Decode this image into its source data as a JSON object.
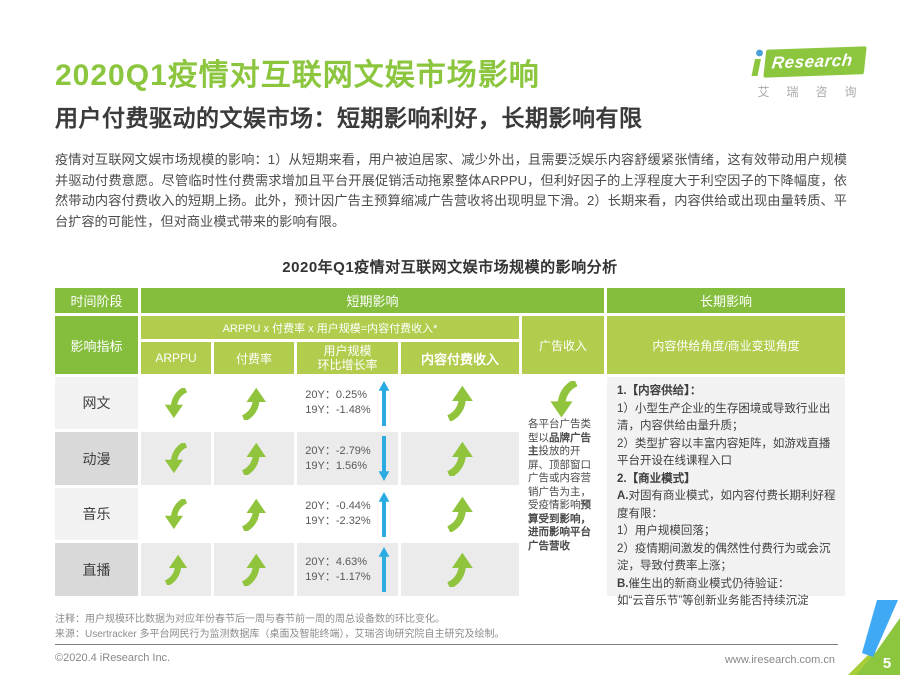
{
  "header": {
    "title": "2020Q1疫情对互联网文娱市场影响",
    "subtitle": "用户付费驱动的文娱市场：短期影响利好，长期影响有限",
    "logo": {
      "i": "i",
      "name": "Research",
      "cn": "艾瑞咨询"
    }
  },
  "intro": "疫情对互联网文娱市场规模的影响：1）从短期来看，用户被迫居家、减少外出，且需要泛娱乐内容舒缓紧张情绪，这有效带动用户规模并驱动付费意愿。尽管临时性付费需求增加且平台开展促销活动拖累整体ARPPU，但利好因子的上浮程度大于利空因子的下降幅度，依然带动内容付费收入的短期上扬。此外，预计因广告主预算缩减广告营收将出现明显下滑。2）长期来看，内容供给或出现由量转质、平台扩容的可能性，但对商业模式带来的影响有限。",
  "table": {
    "title": "2020年Q1疫情对互联网文娱市场规模的影响分析",
    "header": {
      "time_stage": "时间阶段",
      "short_term": "短期影响",
      "long_term": "长期影响",
      "indicator": "影响指标",
      "formula": "ARPPU x 付费率 x 用户规模=内容付费收入*",
      "arppu": "ARPPU",
      "pay_rate": "付费率",
      "user_scale": "用户规模\n环比增长率",
      "content_pay": "内容付费收入",
      "ad_revenue": "广告收入",
      "long_term_sub": "内容供给角度/商业变现角度"
    },
    "rows": [
      {
        "label": "网文",
        "arppu": "down",
        "pay_rate": "up",
        "user_scale": {
          "y20": "20Y：0.25%",
          "y19": "19Y：-1.48%",
          "trend": "up"
        },
        "content_pay": "up"
      },
      {
        "label": "动漫",
        "arppu": "down",
        "pay_rate": "up",
        "user_scale": {
          "y20": "20Y：-2.79%",
          "y19": "19Y：1.56%",
          "trend": "down"
        },
        "content_pay": "up"
      },
      {
        "label": "音乐",
        "arppu": "down",
        "pay_rate": "up",
        "user_scale": {
          "y20": "20Y：-0.44%",
          "y19": "19Y：-2.32%",
          "trend": "up"
        },
        "content_pay": "up"
      },
      {
        "label": "直播",
        "arppu": "up",
        "pay_rate": "up",
        "user_scale": {
          "y20": "20Y：4.63%",
          "y19": "19Y：-1.17%",
          "trend": "up"
        },
        "content_pay": "up"
      }
    ],
    "ad_cell": {
      "arrow": "down",
      "segments": [
        {
          "t": "各平台广告类型以"
        },
        {
          "t": "品牌广告主",
          "b": true
        },
        {
          "t": "投放的开屏、顶部窗口广告或内容营销广告为主，受疫情影响"
        },
        {
          "t": "预算受到影响，进而影响平台广告营收",
          "b": true
        }
      ]
    },
    "long_cell": {
      "lines": [
        [
          {
            "t": "1.【内容供给】：",
            "b": true
          }
        ],
        [
          {
            "t": "1）小型生产企业的生存困境或导致行业出清，内容供给由量升质；"
          }
        ],
        [
          {
            "t": "2）类型扩容以丰富内容矩阵，如游戏直播平台开设在线课程入口"
          }
        ],
        [
          {
            "t": "2.【商业模式】",
            "b": true
          }
        ],
        [
          {
            "t": "A.",
            "b": true
          },
          {
            "t": "对固有商业模式，如内容付费长期利好程度有限："
          }
        ],
        [
          {
            "t": "1）用户规模回落；"
          }
        ],
        [
          {
            "t": "2）疫情期间激发的偶然性付费行为或会沉淀，导致付费率上涨；"
          }
        ],
        [
          {
            "t": "B.",
            "b": true
          },
          {
            "t": "催生出的新商业模式仍待验证："
          }
        ],
        [
          {
            "t": "如“云音乐节”等创新业务能否持续沉淀"
          }
        ]
      ]
    }
  },
  "notes": {
    "note1": "注释：用户规模环比数据为对应年份春节后一周与春节前一周的周总设备数的环比变化。",
    "note2": "来源：Usertracker 多平台网民行为监测数据库（桌面及智能终端），艾瑞咨询研究院自主研究及绘制。"
  },
  "footer": {
    "copyright": "©2020.4 iResearch Inc.",
    "website": "www.iresearch.com.cn",
    "page": "5"
  },
  "colors": {
    "brand_green": "#8CC63F",
    "header_green": "#85BD3D",
    "subheader_green": "#B2CC4D",
    "arrow_green": "#8FC43C",
    "arrow_blue": "#29ABE2",
    "row_label_light": "#F2F2F2",
    "row_label_dark": "#D9D9D9",
    "row_cell_light": "#FFFFFF",
    "row_cell_dark": "#EBEBEB",
    "corner_blue": "#3FA9F5",
    "corner_green_light": "#A6CE39"
  }
}
